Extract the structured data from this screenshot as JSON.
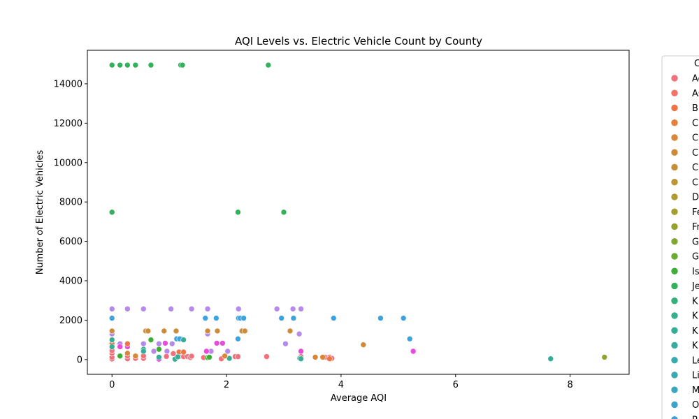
{
  "chart_data": {
    "type": "scatter",
    "title": "AQI Levels vs. Electric Vehicle Count by County",
    "xlabel": "Average AQI",
    "ylabel": "Number of Electric Vehicles",
    "xlim": [
      -0.43,
      9.03
    ],
    "ylim": [
      -750,
      15700
    ],
    "xticks": [
      0,
      2,
      4,
      6,
      8
    ],
    "yticks": [
      0,
      2000,
      4000,
      6000,
      8000,
      10000,
      12000,
      14000
    ],
    "grid": false,
    "legend": {
      "title": "C",
      "placement": "outside-right",
      "entries": [
        {
          "label": "Ad",
          "color": "#f0707c"
        },
        {
          "label": "As",
          "color": "#ef7368"
        },
        {
          "label": "B",
          "color": "#ee7443"
        },
        {
          "label": "C",
          "color": "#e57e38"
        },
        {
          "label": "C",
          "color": "#d7863a"
        },
        {
          "label": "C",
          "color": "#cd8a38"
        },
        {
          "label": "C",
          "color": "#c48e35"
        },
        {
          "label": "C",
          "color": "#bb9532"
        },
        {
          "label": "D",
          "color": "#b09a2f"
        },
        {
          "label": "Fe",
          "color": "#a39f2e"
        },
        {
          "label": "Fr",
          "color": "#95a32e"
        },
        {
          "label": "G",
          "color": "#83a631"
        },
        {
          "label": "G",
          "color": "#6aaa2f"
        },
        {
          "label": "Is",
          "color": "#3cae35"
        },
        {
          "label": "Je",
          "color": "#32b05a"
        },
        {
          "label": "K",
          "color": "#33b07a"
        },
        {
          "label": "K",
          "color": "#35ae8c"
        },
        {
          "label": "K",
          "color": "#36ad97"
        },
        {
          "label": "K",
          "color": "#37aba2"
        },
        {
          "label": "Le",
          "color": "#38aaab"
        },
        {
          "label": "Li",
          "color": "#3aa8b3"
        },
        {
          "label": "M",
          "color": "#3ba6bd"
        },
        {
          "label": "O",
          "color": "#3da3c8"
        },
        {
          "label": "P",
          "color": "#3f9fd6"
        }
      ]
    },
    "series": [
      {
        "color": "#32b05a",
        "points": [
          [
            0,
            14950
          ],
          [
            0.14,
            14950
          ],
          [
            0.27,
            14950
          ],
          [
            0.41,
            14950
          ],
          [
            0.68,
            14950
          ],
          [
            1.2,
            14950
          ],
          [
            1.23,
            14950
          ],
          [
            2.73,
            14950
          ],
          [
            0,
            7480
          ],
          [
            2.2,
            7480
          ],
          [
            3,
            7480
          ]
        ]
      },
      {
        "color": "#b689ec",
        "points": [
          [
            0,
            2570
          ],
          [
            0.27,
            2570
          ],
          [
            0.55,
            2570
          ],
          [
            1.03,
            2570
          ],
          [
            1.39,
            2570
          ],
          [
            1.67,
            2570
          ],
          [
            2.21,
            2570
          ],
          [
            2.88,
            2570
          ],
          [
            3.16,
            2570
          ],
          [
            3.3,
            2570
          ],
          [
            0,
            1300
          ],
          [
            0.14,
            800
          ],
          [
            0.55,
            800
          ],
          [
            0.82,
            800
          ],
          [
            1.05,
            800
          ],
          [
            1.67,
            1300
          ],
          [
            1.73,
            420
          ],
          [
            2.02,
            420
          ],
          [
            0.73,
            420
          ],
          [
            0.96,
            420
          ],
          [
            3.03,
            800
          ],
          [
            3.27,
            1300
          ]
        ]
      },
      {
        "color": "#3da3e0",
        "points": [
          [
            0,
            2100
          ],
          [
            1.63,
            2100
          ],
          [
            1.82,
            2100
          ],
          [
            2.21,
            2100
          ],
          [
            2.24,
            2100
          ],
          [
            2.3,
            2100
          ],
          [
            2.96,
            2100
          ],
          [
            3.17,
            2100
          ],
          [
            3.87,
            2100
          ],
          [
            4.69,
            2100
          ],
          [
            5.09,
            2100
          ],
          [
            1.13,
            1050
          ],
          [
            1.2,
            1050
          ],
          [
            2.2,
            1050
          ],
          [
            5.2,
            1050
          ],
          [
            1.18,
            1050
          ]
        ]
      },
      {
        "color": "#cd8a38",
        "points": [
          [
            0,
            1450
          ],
          [
            0.59,
            1450
          ],
          [
            0.63,
            1450
          ],
          [
            0.91,
            1450
          ],
          [
            1.12,
            1450
          ],
          [
            1.67,
            1450
          ],
          [
            1.84,
            1450
          ],
          [
            2.27,
            1450
          ],
          [
            2.32,
            1450
          ],
          [
            3.11,
            1450
          ],
          [
            4.39,
            750
          ]
        ]
      },
      {
        "color": "#e94bdc",
        "points": [
          [
            0,
            650
          ],
          [
            0.14,
            650
          ],
          [
            0.27,
            650
          ],
          [
            1.93,
            830
          ],
          [
            1.83,
            830
          ],
          [
            0.93,
            830
          ],
          [
            1.65,
            420
          ],
          [
            3.3,
            420
          ],
          [
            5.26,
            420
          ],
          [
            0.82,
            20
          ]
        ]
      },
      {
        "color": "#f0707c",
        "points": [
          [
            0,
            30
          ],
          [
            0,
            120
          ],
          [
            0,
            320
          ],
          [
            0,
            450
          ],
          [
            0.14,
            180
          ],
          [
            0.27,
            40
          ],
          [
            0.27,
            180
          ],
          [
            0.27,
            320
          ],
          [
            0.41,
            60
          ],
          [
            0.55,
            60
          ],
          [
            0.55,
            190
          ],
          [
            0.95,
            160
          ],
          [
            1.07,
            300
          ],
          [
            1.17,
            150
          ],
          [
            1.25,
            150
          ],
          [
            1.32,
            150
          ],
          [
            1.37,
            100
          ],
          [
            1.39,
            170
          ],
          [
            1.6,
            100
          ],
          [
            1.91,
            40
          ],
          [
            2.15,
            150
          ],
          [
            2.2,
            150
          ],
          [
            2.7,
            150
          ],
          [
            3.3,
            150
          ],
          [
            3.72,
            120
          ],
          [
            3.8,
            120
          ],
          [
            3.84,
            60
          ]
        ]
      },
      {
        "color": "#ee7443",
        "points": [
          [
            1.17,
            380
          ],
          [
            1.25,
            380
          ],
          [
            0,
            800
          ],
          [
            0.27,
            800
          ],
          [
            3.8,
            40
          ]
        ]
      },
      {
        "color": "#36ad97",
        "points": [
          [
            0,
            1000
          ],
          [
            0,
            650
          ],
          [
            0.55,
            520
          ],
          [
            0.55,
            420
          ],
          [
            0.82,
            120
          ],
          [
            0.82,
            520
          ],
          [
            1.1,
            20
          ],
          [
            1.15,
            140
          ],
          [
            1.25,
            1000
          ],
          [
            2.05,
            60
          ],
          [
            3.28,
            60
          ],
          [
            3.3,
            40
          ],
          [
            7.66,
            40
          ]
        ]
      },
      {
        "color": "#3cae35",
        "points": [
          [
            0.14,
            180
          ],
          [
            0.68,
            1000
          ],
          [
            0.82,
            520
          ],
          [
            1.67,
            100
          ],
          [
            1.7,
            120
          ]
        ]
      },
      {
        "color": "#95a32e",
        "points": [
          [
            8.6,
            120
          ]
        ]
      },
      {
        "color": "#d7863a",
        "points": [
          [
            0.27,
            320
          ],
          [
            0.41,
            180
          ],
          [
            1.97,
            180
          ],
          [
            3.55,
            120
          ],
          [
            3.68,
            120
          ]
        ]
      }
    ]
  }
}
